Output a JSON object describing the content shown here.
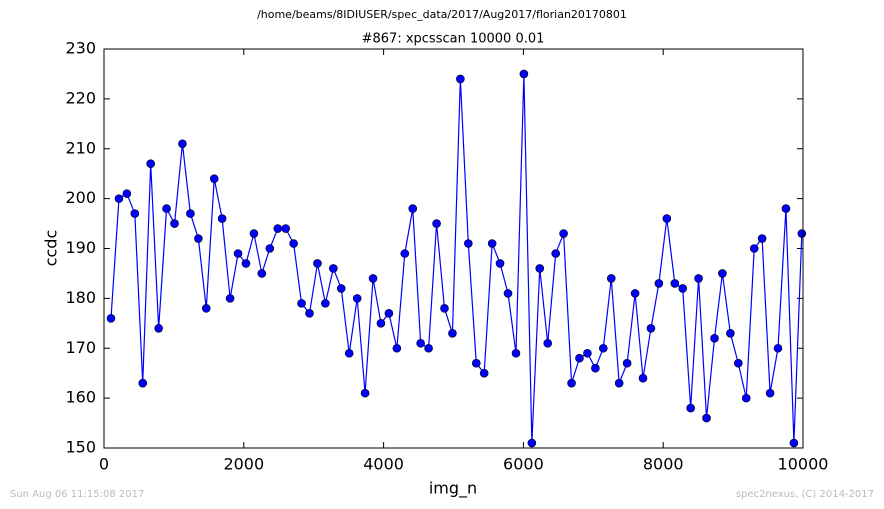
{
  "chart_data": {
    "type": "line",
    "suptitle": "/home/beams/8IDIUSER/spec_data/2017/Aug2017/florian20170801",
    "title": "#867: xpcsscan 10000 0.01",
    "xlabel": "img_n",
    "ylabel": "ccdc",
    "footer_left": "Sun Aug 06 11:15:08 2017",
    "footer_right": "spec2nexus, (C) 2014-2017",
    "xlim": [
      0,
      10000
    ],
    "ylim": [
      150,
      230
    ],
    "xticks": [
      0,
      2000,
      4000,
      6000,
      8000,
      10000
    ],
    "yticks": [
      150,
      160,
      170,
      180,
      190,
      200,
      210,
      220,
      230
    ],
    "grid": false,
    "x": [
      100,
      214,
      327,
      441,
      554,
      668,
      782,
      895,
      1009,
      1122,
      1236,
      1350,
      1463,
      1577,
      1690,
      1804,
      1918,
      2031,
      2145,
      2258,
      2372,
      2486,
      2599,
      2713,
      2826,
      2940,
      3054,
      3167,
      3281,
      3394,
      3508,
      3622,
      3735,
      3849,
      3962,
      4076,
      4190,
      4303,
      4417,
      4530,
      4644,
      4758,
      4871,
      4985,
      5098,
      5212,
      5326,
      5439,
      5553,
      5666,
      5780,
      5894,
      6007,
      6121,
      6234,
      6348,
      6462,
      6575,
      6689,
      6802,
      6916,
      7030,
      7143,
      7257,
      7370,
      7484,
      7598,
      7711,
      7825,
      7938,
      8052,
      8166,
      8279,
      8393,
      8506,
      8620,
      8734,
      8847,
      8961,
      9074,
      9188,
      9302,
      9415,
      9529,
      9642,
      9756,
      9870,
      9983
    ],
    "series": [
      {
        "color": "#0000ff",
        "values": [
          176,
          200,
          201,
          197,
          163,
          207,
          174,
          198,
          195,
          211,
          197,
          192,
          178,
          204,
          196,
          180,
          189,
          187,
          193,
          185,
          190,
          194,
          194,
          191,
          179,
          177,
          187,
          179,
          186,
          182,
          169,
          180,
          161,
          184,
          175,
          177,
          170,
          189,
          198,
          171,
          170,
          195,
          178,
          173,
          224,
          191,
          167,
          165,
          191,
          187,
          181,
          169,
          225,
          151,
          186,
          171,
          189,
          193,
          163,
          168,
          169,
          166,
          170,
          184,
          163,
          167,
          181,
          164,
          174,
          183,
          196,
          183,
          182,
          158,
          184,
          156,
          172,
          185,
          173,
          167,
          160,
          190,
          192,
          161,
          170,
          198,
          151,
          193
        ]
      }
    ]
  }
}
